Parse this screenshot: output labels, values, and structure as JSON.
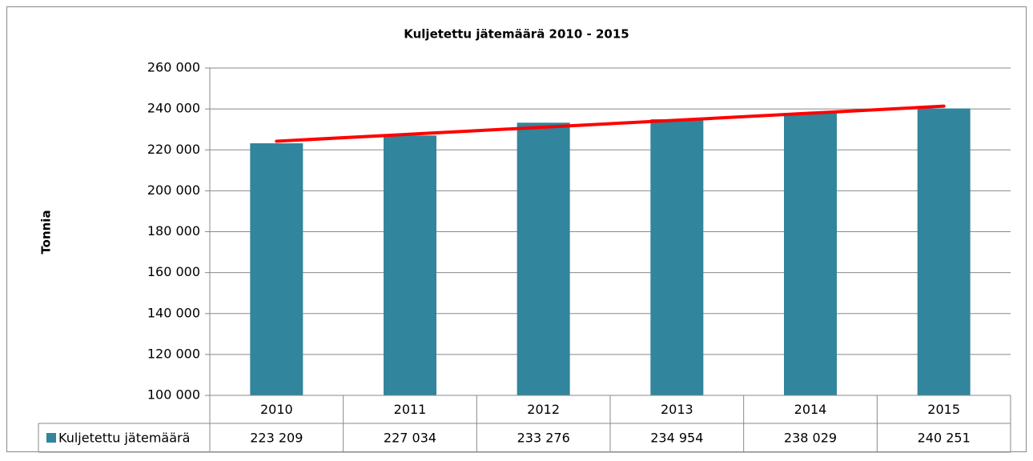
{
  "chart_data": {
    "type": "bar",
    "title": "Kuljetettu jätemäärä 2010 - 2015",
    "y_label": "Tonnia",
    "categories": [
      "2010",
      "2011",
      "2012",
      "2013",
      "2014",
      "2015"
    ],
    "series": [
      {
        "name": "Kuljetettu jätemäärä",
        "color": "#31859c",
        "values": [
          223209,
          227034,
          233276,
          234954,
          238029,
          240251
        ],
        "value_labels": [
          "223 209",
          "227 034",
          "233 276",
          "234 954",
          "238 029",
          "240 251"
        ]
      }
    ],
    "ylim": [
      100000,
      260000
    ],
    "yticks": [
      {
        "value": 100000,
        "label": "100 000"
      },
      {
        "value": 120000,
        "label": "120 000"
      },
      {
        "value": 140000,
        "label": "140 000"
      },
      {
        "value": 160000,
        "label": "160 000"
      },
      {
        "value": 180000,
        "label": "180 000"
      },
      {
        "value": 200000,
        "label": "200 000"
      },
      {
        "value": 220000,
        "label": "220 000"
      },
      {
        "value": 240000,
        "label": "240 000"
      },
      {
        "value": 260000,
        "label": "260 000"
      }
    ],
    "grid": true,
    "trendline": true,
    "trendline_color": "#ff0000",
    "data_table": true
  }
}
